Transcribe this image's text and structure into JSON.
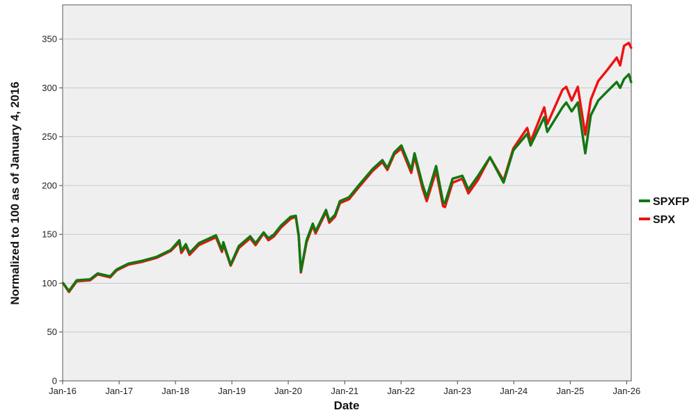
{
  "chart_data": {
    "type": "line",
    "xlabel": "Date",
    "ylabel": "Normalized to 100 as of January 4, 2016",
    "x_tick_labels": [
      "Jan-16",
      "Jan-17",
      "Jan-18",
      "Jan-19",
      "Jan-20",
      "Jan-21",
      "Jan-22",
      "Jan-23",
      "Jan-24",
      "Jan-25",
      "Jan-26"
    ],
    "x_range": [
      "2016-01-01",
      "2026-01-31"
    ],
    "y_ticks": [
      0,
      50,
      100,
      150,
      200,
      250,
      300,
      350
    ],
    "ylim": [
      0,
      385
    ],
    "grid": "horizontal",
    "plot_background": "#efefef",
    "legend": {
      "position": "right",
      "entries": [
        "SPXFP",
        "SPX"
      ]
    },
    "series": [
      {
        "name": "SPX",
        "color": "#ee1111",
        "x": [
          "2016-01-04",
          "2016-02-11",
          "2016-04-01",
          "2016-06-27",
          "2016-08-15",
          "2016-11-04",
          "2016-12-15",
          "2017-03-01",
          "2017-06-01",
          "2017-09-01",
          "2017-12-01",
          "2018-01-26",
          "2018-02-08",
          "2018-03-09",
          "2018-04-02",
          "2018-06-01",
          "2018-09-20",
          "2018-10-29",
          "2018-11-07",
          "2018-12-24",
          "2019-02-15",
          "2019-04-30",
          "2019-06-03",
          "2019-07-26",
          "2019-08-26",
          "2019-10-01",
          "2019-11-15",
          "2020-01-17",
          "2020-02-19",
          "2020-03-09",
          "2020-03-23",
          "2020-04-29",
          "2020-06-08",
          "2020-06-26",
          "2020-09-02",
          "2020-09-23",
          "2020-10-30",
          "2020-12-01",
          "2021-01-29",
          "2021-04-01",
          "2021-07-01",
          "2021-09-02",
          "2021-10-04",
          "2021-11-18",
          "2022-01-03",
          "2022-03-08",
          "2022-03-29",
          "2022-05-20",
          "2022-06-16",
          "2022-08-16",
          "2022-09-30",
          "2022-10-12",
          "2022-12-01",
          "2023-02-02",
          "2023-03-13",
          "2023-05-15",
          "2023-07-31",
          "2023-10-27",
          "2023-12-29",
          "2024-03-28",
          "2024-04-19",
          "2024-07-16",
          "2024-08-05",
          "2024-11-11",
          "2024-12-06",
          "2025-01-10",
          "2025-02-19",
          "2025-04-08",
          "2025-05-14",
          "2025-07-01",
          "2025-09-01",
          "2025-10-29",
          "2025-11-20",
          "2025-12-15",
          "2026-01-15",
          "2026-01-30"
        ],
        "values": [
          100,
          91,
          102,
          103,
          109,
          106,
          113,
          119,
          122,
          126,
          133,
          142,
          131,
          138,
          129,
          139,
          147,
          132,
          140,
          118,
          136,
          146,
          139,
          151,
          144,
          148,
          157,
          166,
          168,
          148,
          111,
          142,
          159,
          151,
          173,
          162,
          168,
          182,
          186,
          198,
          215,
          224,
          216,
          232,
          238,
          213,
          230,
          197,
          184,
          215,
          179,
          178,
          203,
          207,
          192,
          206,
          229,
          205,
          238,
          259,
          245,
          280,
          263,
          298,
          301,
          287,
          301,
          252,
          288,
          307,
          319,
          331,
          323,
          343,
          346,
          341
        ]
      },
      {
        "name": "SPXFP",
        "color": "#117711",
        "x": [
          "2016-01-04",
          "2016-02-11",
          "2016-04-01",
          "2016-06-27",
          "2016-08-15",
          "2016-11-04",
          "2016-12-15",
          "2017-03-01",
          "2017-06-01",
          "2017-09-01",
          "2017-12-01",
          "2018-01-26",
          "2018-02-08",
          "2018-03-09",
          "2018-04-02",
          "2018-06-01",
          "2018-09-20",
          "2018-10-29",
          "2018-11-07",
          "2018-12-24",
          "2019-02-15",
          "2019-04-30",
          "2019-06-03",
          "2019-07-26",
          "2019-08-26",
          "2019-10-01",
          "2019-11-15",
          "2020-01-17",
          "2020-02-19",
          "2020-03-09",
          "2020-03-23",
          "2020-04-29",
          "2020-06-08",
          "2020-06-26",
          "2020-09-02",
          "2020-09-23",
          "2020-10-30",
          "2020-12-01",
          "2021-01-29",
          "2021-04-01",
          "2021-07-01",
          "2021-09-02",
          "2021-10-04",
          "2021-11-18",
          "2022-01-03",
          "2022-03-08",
          "2022-03-29",
          "2022-05-20",
          "2022-06-16",
          "2022-08-16",
          "2022-09-30",
          "2022-10-12",
          "2022-12-01",
          "2023-02-02",
          "2023-03-13",
          "2023-05-15",
          "2023-07-31",
          "2023-10-27",
          "2023-12-29",
          "2024-03-28",
          "2024-04-19",
          "2024-07-16",
          "2024-08-05",
          "2024-11-11",
          "2024-12-06",
          "2025-01-10",
          "2025-02-19",
          "2025-04-08",
          "2025-05-14",
          "2025-07-01",
          "2025-09-01",
          "2025-10-29",
          "2025-11-20",
          "2025-12-15",
          "2026-01-15",
          "2026-01-30"
        ],
        "values": [
          100,
          92,
          103,
          104,
          110,
          107,
          114,
          120,
          123,
          127,
          134,
          144,
          133,
          140,
          131,
          141,
          149,
          134,
          142,
          119,
          138,
          148,
          141,
          152,
          146,
          150,
          159,
          168,
          169,
          149,
          112,
          144,
          161,
          153,
          175,
          164,
          170,
          184,
          188,
          200,
          217,
          226,
          218,
          234,
          241,
          216,
          233,
          201,
          188,
          220,
          183,
          182,
          207,
          210,
          196,
          210,
          229,
          203,
          236,
          253,
          241,
          270,
          255,
          280,
          285,
          276,
          285,
          233,
          272,
          287,
          297,
          306,
          300,
          309,
          314,
          306
        ]
      }
    ]
  }
}
